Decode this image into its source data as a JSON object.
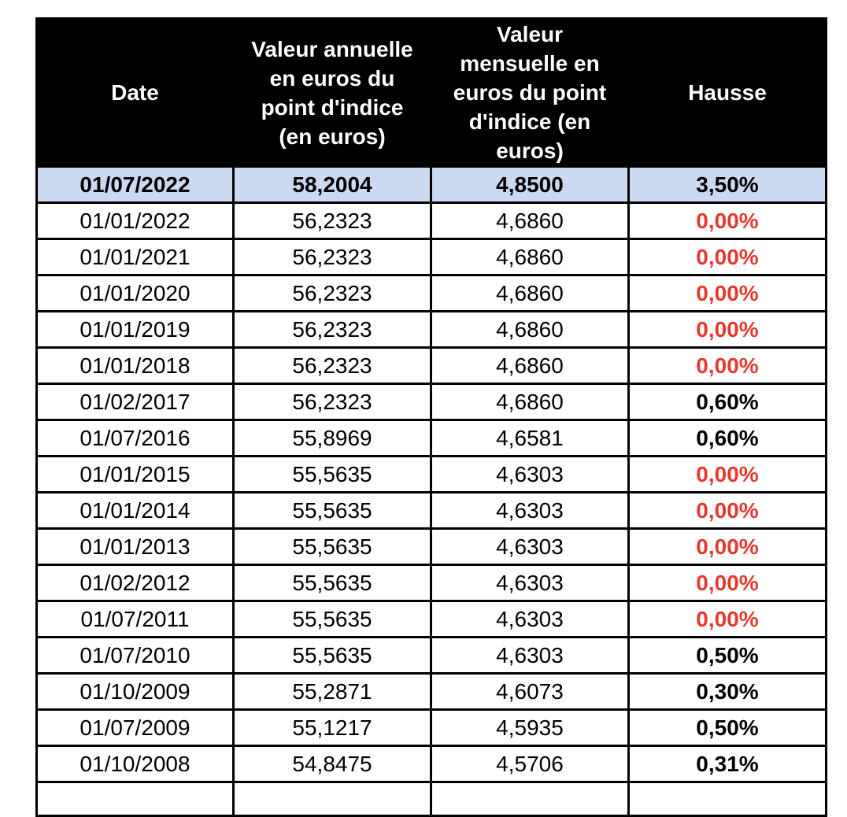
{
  "table": {
    "header": {
      "date": "Date",
      "annual": "Valeur annuelle\nen euros du\npoint d'indice\n(en euros)",
      "monthly": "Valeur\nmensuelle en\neuros du point\nd'indice (en\neuros)",
      "hausse": "Hausse"
    },
    "colors": {
      "header_bg": "#000000",
      "header_text": "#ffffff",
      "highlight_row_bg": "#ccd9f3",
      "hausse_zero_red": "#e6392e",
      "border": "#000000"
    },
    "rows": [
      {
        "date": "01/07/2022",
        "annual": "58,2004",
        "monthly": "4,8500",
        "hausse": "3,50%",
        "highlight": true,
        "hausse_style": "black"
      },
      {
        "date": "01/01/2022",
        "annual": "56,2323",
        "monthly": "4,6860",
        "hausse": "0,00%",
        "highlight": false,
        "hausse_style": "red"
      },
      {
        "date": "01/01/2021",
        "annual": "56,2323",
        "monthly": "4,6860",
        "hausse": "0,00%",
        "highlight": false,
        "hausse_style": "red"
      },
      {
        "date": "01/01/2020",
        "annual": "56,2323",
        "monthly": "4,6860",
        "hausse": "0,00%",
        "highlight": false,
        "hausse_style": "red"
      },
      {
        "date": "01/01/2019",
        "annual": "56,2323",
        "monthly": "4,6860",
        "hausse": "0,00%",
        "highlight": false,
        "hausse_style": "red"
      },
      {
        "date": "01/01/2018",
        "annual": "56,2323",
        "monthly": "4,6860",
        "hausse": "0,00%",
        "highlight": false,
        "hausse_style": "red"
      },
      {
        "date": "01/02/2017",
        "annual": "56,2323",
        "monthly": "4,6860",
        "hausse": "0,60%",
        "highlight": false,
        "hausse_style": "black"
      },
      {
        "date": "01/07/2016",
        "annual": "55,8969",
        "monthly": "4,6581",
        "hausse": "0,60%",
        "highlight": false,
        "hausse_style": "black"
      },
      {
        "date": "01/01/2015",
        "annual": "55,5635",
        "monthly": "4,6303",
        "hausse": "0,00%",
        "highlight": false,
        "hausse_style": "red"
      },
      {
        "date": "01/01/2014",
        "annual": "55,5635",
        "monthly": "4,6303",
        "hausse": "0,00%",
        "highlight": false,
        "hausse_style": "red"
      },
      {
        "date": "01/01/2013",
        "annual": "55,5635",
        "monthly": "4,6303",
        "hausse": "0,00%",
        "highlight": false,
        "hausse_style": "red"
      },
      {
        "date": "01/02/2012",
        "annual": "55,5635",
        "monthly": "4,6303",
        "hausse": "0,00%",
        "highlight": false,
        "hausse_style": "red"
      },
      {
        "date": "01/07/2011",
        "annual": "55,5635",
        "monthly": "4,6303",
        "hausse": "0,00%",
        "highlight": false,
        "hausse_style": "red"
      },
      {
        "date": "01/07/2010",
        "annual": "55,5635",
        "monthly": "4,6303",
        "hausse": "0,50%",
        "highlight": false,
        "hausse_style": "black"
      },
      {
        "date": "01/10/2009",
        "annual": "55,2871",
        "monthly": "4,6073",
        "hausse": "0,30%",
        "highlight": false,
        "hausse_style": "black"
      },
      {
        "date": "01/07/2009",
        "annual": "55,1217",
        "monthly": "4,5935",
        "hausse": "0,50%",
        "highlight": false,
        "hausse_style": "black"
      },
      {
        "date": "01/10/2008",
        "annual": "54,8475",
        "monthly": "4,5706",
        "hausse": "0,31%",
        "highlight": false,
        "hausse_style": "black"
      }
    ]
  }
}
